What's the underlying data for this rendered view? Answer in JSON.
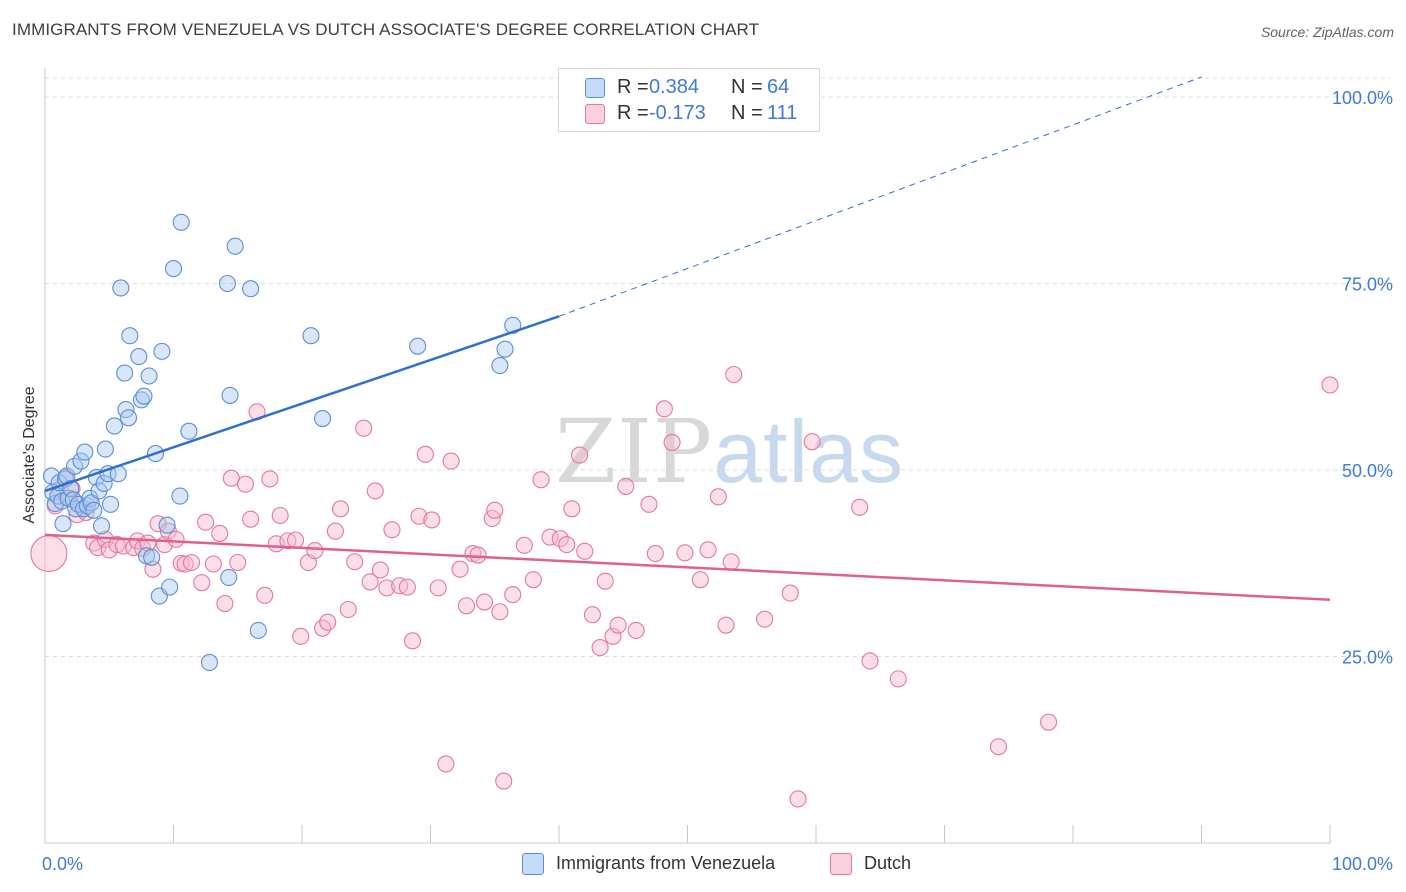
{
  "title": "IMMIGRANTS FROM VENEZUELA VS DUTCH ASSOCIATE'S DEGREE CORRELATION CHART",
  "source": "Source: ZipAtlas.com",
  "watermark": {
    "zip": "ZIP",
    "atlas": "atlas"
  },
  "legend": {
    "r_label": "R =",
    "n_label": "N =",
    "rows": [
      {
        "r": "0.384",
        "n": "64"
      },
      {
        "r": "-0.173",
        "n": "111"
      }
    ]
  },
  "colors": {
    "blue_fill": "#a9c8f0",
    "blue_stroke": "#5a8fd8",
    "blue_line": "#2f6fd0",
    "pink_fill": "#f7b8cc",
    "pink_stroke": "#e4789d",
    "pink_line": "#e0608c",
    "axis_text": "#3f7bd6",
    "grid": "#dadce0"
  },
  "chart_data": {
    "type": "scatter",
    "title": "IMMIGRANTS FROM VENEZUELA VS DUTCH ASSOCIATE'S DEGREE CORRELATION CHART",
    "xlabel": "",
    "ylabel": "Associate's Degree",
    "xlim": [
      0,
      100
    ],
    "ylim": [
      0,
      100
    ],
    "x_tick_labels": [
      "0.0%",
      "100.0%"
    ],
    "y_ticks": [
      25,
      50,
      75,
      100
    ],
    "y_tick_labels": [
      "25.0%",
      "50.0%",
      "75.0%",
      "100.0%"
    ],
    "series": [
      {
        "name": "Immigrants from Venezuela",
        "r": 0.384,
        "n": 64,
        "trend": {
          "x0": 0,
          "y0": 47.2,
          "x1": 40,
          "y1": 70.6,
          "dash_x1": 90,
          "dash_y1": 100
        },
        "points": [
          [
            0.5,
            49.2
          ],
          [
            0.6,
            47.0
          ],
          [
            0.8,
            45.5
          ],
          [
            1.0,
            46.5
          ],
          [
            1.1,
            48.3
          ],
          [
            1.3,
            45.8
          ],
          [
            1.4,
            42.8
          ],
          [
            1.6,
            48.8
          ],
          [
            1.7,
            49.2
          ],
          [
            1.8,
            46.2
          ],
          [
            2.0,
            47.5
          ],
          [
            2.2,
            46.0
          ],
          [
            2.3,
            50.5
          ],
          [
            2.4,
            44.8
          ],
          [
            2.6,
            45.4
          ],
          [
            2.8,
            51.2
          ],
          [
            3.0,
            44.8
          ],
          [
            3.1,
            52.4
          ],
          [
            3.3,
            45.2
          ],
          [
            3.5,
            46.2
          ],
          [
            3.6,
            45.6
          ],
          [
            3.8,
            44.6
          ],
          [
            4.0,
            49.0
          ],
          [
            4.2,
            47.2
          ],
          [
            4.4,
            42.5
          ],
          [
            4.6,
            48.2
          ],
          [
            4.7,
            52.8
          ],
          [
            4.9,
            49.5
          ],
          [
            5.1,
            45.4
          ],
          [
            5.4,
            55.9
          ],
          [
            5.7,
            49.5
          ],
          [
            5.9,
            74.4
          ],
          [
            6.2,
            63.0
          ],
          [
            6.3,
            58.1
          ],
          [
            6.5,
            57.0
          ],
          [
            6.6,
            68.0
          ],
          [
            7.3,
            65.2
          ],
          [
            7.5,
            59.4
          ],
          [
            7.7,
            59.9
          ],
          [
            7.9,
            38.5
          ],
          [
            8.1,
            62.6
          ],
          [
            8.3,
            38.3
          ],
          [
            8.6,
            52.2
          ],
          [
            8.9,
            33.1
          ],
          [
            9.1,
            65.9
          ],
          [
            9.5,
            42.6
          ],
          [
            9.7,
            34.3
          ],
          [
            10.0,
            77.0
          ],
          [
            10.5,
            46.5
          ],
          [
            10.6,
            83.2
          ],
          [
            11.2,
            55.2
          ],
          [
            12.8,
            24.2
          ],
          [
            14.2,
            75.0
          ],
          [
            14.3,
            35.6
          ],
          [
            14.4,
            60.0
          ],
          [
            14.8,
            80.0
          ],
          [
            16.0,
            74.3
          ],
          [
            16.6,
            28.5
          ],
          [
            20.7,
            68.0
          ],
          [
            21.6,
            56.9
          ],
          [
            29.0,
            66.6
          ],
          [
            35.4,
            64.0
          ],
          [
            35.8,
            66.2
          ],
          [
            36.4,
            69.4
          ]
        ]
      },
      {
        "name": "Dutch",
        "r": -0.173,
        "n": 111,
        "trend": {
          "x0": 0,
          "y0": 41.3,
          "x1": 100,
          "y1": 32.6
        },
        "points": [
          [
            0.3,
            38.8
          ],
          [
            0.8,
            45.2
          ],
          [
            1.2,
            47.2
          ],
          [
            1.6,
            49.0
          ],
          [
            1.9,
            46.2
          ],
          [
            2.1,
            47.5
          ],
          [
            2.5,
            44.0
          ],
          [
            3.2,
            44.3
          ],
          [
            3.8,
            40.2
          ],
          [
            4.1,
            39.6
          ],
          [
            4.7,
            40.7
          ],
          [
            5.0,
            39.3
          ],
          [
            5.6,
            40.0
          ],
          [
            6.1,
            39.8
          ],
          [
            6.9,
            39.6
          ],
          [
            7.2,
            40.5
          ],
          [
            7.6,
            39.5
          ],
          [
            8.0,
            40.2
          ],
          [
            8.4,
            36.7
          ],
          [
            8.8,
            42.8
          ],
          [
            9.3,
            40.0
          ],
          [
            9.6,
            41.8
          ],
          [
            10.2,
            40.7
          ],
          [
            10.6,
            37.5
          ],
          [
            10.9,
            37.4
          ],
          [
            11.4,
            37.6
          ],
          [
            12.2,
            34.9
          ],
          [
            12.5,
            43.0
          ],
          [
            13.1,
            37.4
          ],
          [
            13.6,
            41.5
          ],
          [
            14.0,
            32.1
          ],
          [
            14.5,
            48.9
          ],
          [
            15.0,
            37.6
          ],
          [
            15.6,
            48.1
          ],
          [
            16.0,
            43.4
          ],
          [
            16.5,
            57.8
          ],
          [
            17.1,
            33.2
          ],
          [
            17.5,
            48.8
          ],
          [
            18.0,
            40.1
          ],
          [
            18.3,
            43.9
          ],
          [
            18.9,
            40.5
          ],
          [
            19.5,
            40.6
          ],
          [
            19.9,
            27.7
          ],
          [
            20.5,
            37.6
          ],
          [
            21.0,
            39.2
          ],
          [
            21.6,
            28.8
          ],
          [
            22.0,
            29.6
          ],
          [
            22.6,
            41.8
          ],
          [
            23.0,
            44.8
          ],
          [
            23.6,
            31.3
          ],
          [
            24.1,
            37.7
          ],
          [
            24.8,
            55.6
          ],
          [
            25.3,
            35.0
          ],
          [
            25.7,
            47.2
          ],
          [
            26.1,
            36.6
          ],
          [
            26.6,
            34.2
          ],
          [
            27.0,
            42.0
          ],
          [
            27.6,
            34.5
          ],
          [
            28.2,
            34.3
          ],
          [
            28.6,
            27.1
          ],
          [
            29.1,
            43.8
          ],
          [
            29.6,
            52.1
          ],
          [
            30.1,
            43.3
          ],
          [
            30.6,
            34.2
          ],
          [
            31.2,
            10.6
          ],
          [
            31.6,
            51.2
          ],
          [
            32.3,
            36.7
          ],
          [
            32.8,
            31.8
          ],
          [
            33.3,
            38.8
          ],
          [
            33.7,
            38.6
          ],
          [
            34.2,
            32.3
          ],
          [
            34.8,
            43.5
          ],
          [
            35.0,
            44.6
          ],
          [
            35.4,
            31.0
          ],
          [
            35.7,
            8.3
          ],
          [
            36.4,
            33.3
          ],
          [
            37.3,
            39.9
          ],
          [
            38.0,
            35.3
          ],
          [
            38.6,
            48.7
          ],
          [
            39.3,
            41.0
          ],
          [
            40.1,
            40.8
          ],
          [
            40.6,
            40.0
          ],
          [
            41.0,
            44.8
          ],
          [
            41.6,
            52.0
          ],
          [
            42.0,
            39.1
          ],
          [
            42.6,
            30.6
          ],
          [
            43.2,
            26.2
          ],
          [
            43.6,
            35.1
          ],
          [
            44.2,
            27.7
          ],
          [
            44.6,
            29.2
          ],
          [
            45.2,
            47.8
          ],
          [
            46.0,
            28.5
          ],
          [
            47.0,
            45.4
          ],
          [
            47.5,
            38.8
          ],
          [
            48.2,
            58.2
          ],
          [
            48.8,
            53.7
          ],
          [
            49.8,
            38.9
          ],
          [
            51.0,
            35.3
          ],
          [
            51.6,
            39.3
          ],
          [
            52.4,
            46.4
          ],
          [
            53.0,
            29.2
          ],
          [
            53.4,
            37.7
          ],
          [
            53.6,
            62.8
          ],
          [
            56.0,
            30.0
          ],
          [
            58.0,
            33.5
          ],
          [
            58.6,
            5.9
          ],
          [
            59.7,
            53.8
          ],
          [
            63.4,
            45.0
          ],
          [
            64.2,
            24.4
          ],
          [
            66.4,
            22.0
          ],
          [
            74.2,
            12.9
          ],
          [
            78.1,
            16.2
          ],
          [
            100.0,
            61.4
          ]
        ]
      }
    ]
  }
}
